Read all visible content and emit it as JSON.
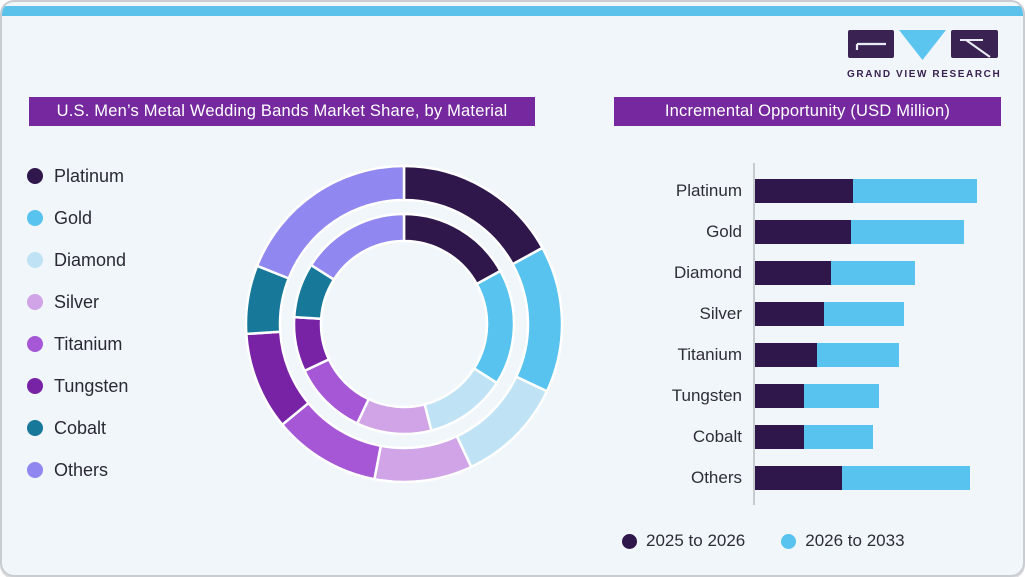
{
  "card": {
    "background": "#F1F6FA",
    "border_color": "#C9CDD2",
    "accent_color": "#5BC2EC"
  },
  "logo": {
    "brand": "GRAND VIEW RESEARCH",
    "dark_color": "#3A2353",
    "accent_color": "#5BC5F0"
  },
  "left_chart": {
    "title": "U.S. Men’s Metal Wedding Bands Market Share, by Material",
    "title_bg": "#76289E",
    "legend": [
      {
        "label": "Platinum",
        "color": "#2F164B"
      },
      {
        "label": "Gold",
        "color": "#57C3EE"
      },
      {
        "label": "Diamond",
        "color": "#BFE3F5"
      },
      {
        "label": "Silver",
        "color": "#D0A4E6"
      },
      {
        "label": "Titanium",
        "color": "#A557D6"
      },
      {
        "label": "Tungsten",
        "color": "#7823A6"
      },
      {
        "label": "Cobalt",
        "color": "#17789A"
      },
      {
        "label": "Others",
        "color": "#9187F0"
      }
    ]
  },
  "right_chart": {
    "title": "Incremental Opportunity (USD Million)",
    "title_bg": "#76289E",
    "axis_color": "#C6CBD0",
    "legend": [
      {
        "label": "2025 to 2026",
        "color": "#2F164B"
      },
      {
        "label": "2026 to 2033",
        "color": "#57C3EE"
      }
    ]
  },
  "chart_data": [
    {
      "type": "pie",
      "subtype": "double-ring-donut",
      "title": "U.S. Men’s Metal Wedding Bands Market Share, by Material",
      "categories": [
        "Platinum",
        "Gold",
        "Diamond",
        "Silver",
        "Titanium",
        "Tungsten",
        "Cobalt",
        "Others"
      ],
      "series": [
        {
          "name": "Outer ring",
          "values": [
            17,
            15,
            11,
            10,
            11,
            10,
            7,
            19
          ]
        },
        {
          "name": "Inner ring",
          "values": [
            17,
            17,
            12,
            11,
            11,
            8,
            8,
            16
          ]
        }
      ],
      "units": "% share (estimated from segment angles; no data labels shown)",
      "colors": [
        "#2F164B",
        "#57C3EE",
        "#BFE3F5",
        "#D0A4E6",
        "#A557D6",
        "#7823A6",
        "#17789A",
        "#9187F0"
      ],
      "start_angle_deg": 0,
      "clockwise": true,
      "legend_position": "left"
    },
    {
      "type": "bar",
      "orientation": "horizontal",
      "stacked": true,
      "title": "Incremental Opportunity (USD Million)",
      "categories": [
        "Platinum",
        "Gold",
        "Diamond",
        "Silver",
        "Titanium",
        "Tungsten",
        "Cobalt",
        "Others"
      ],
      "series": [
        {
          "name": "2025 to 2026",
          "color": "#2F164B",
          "values": [
            44,
            43,
            34,
            31,
            28,
            22,
            22,
            39
          ]
        },
        {
          "name": "2026 to 2033",
          "color": "#57C3EE",
          "values": [
            56,
            51,
            38,
            36,
            37,
            34,
            31,
            58
          ]
        }
      ],
      "xlim": [
        0,
        104
      ],
      "value_axis_tick_labels_visible": false,
      "units": "relative size (USD Million; no axis tick labels shown)",
      "grid": false,
      "legend_position": "bottom"
    }
  ]
}
